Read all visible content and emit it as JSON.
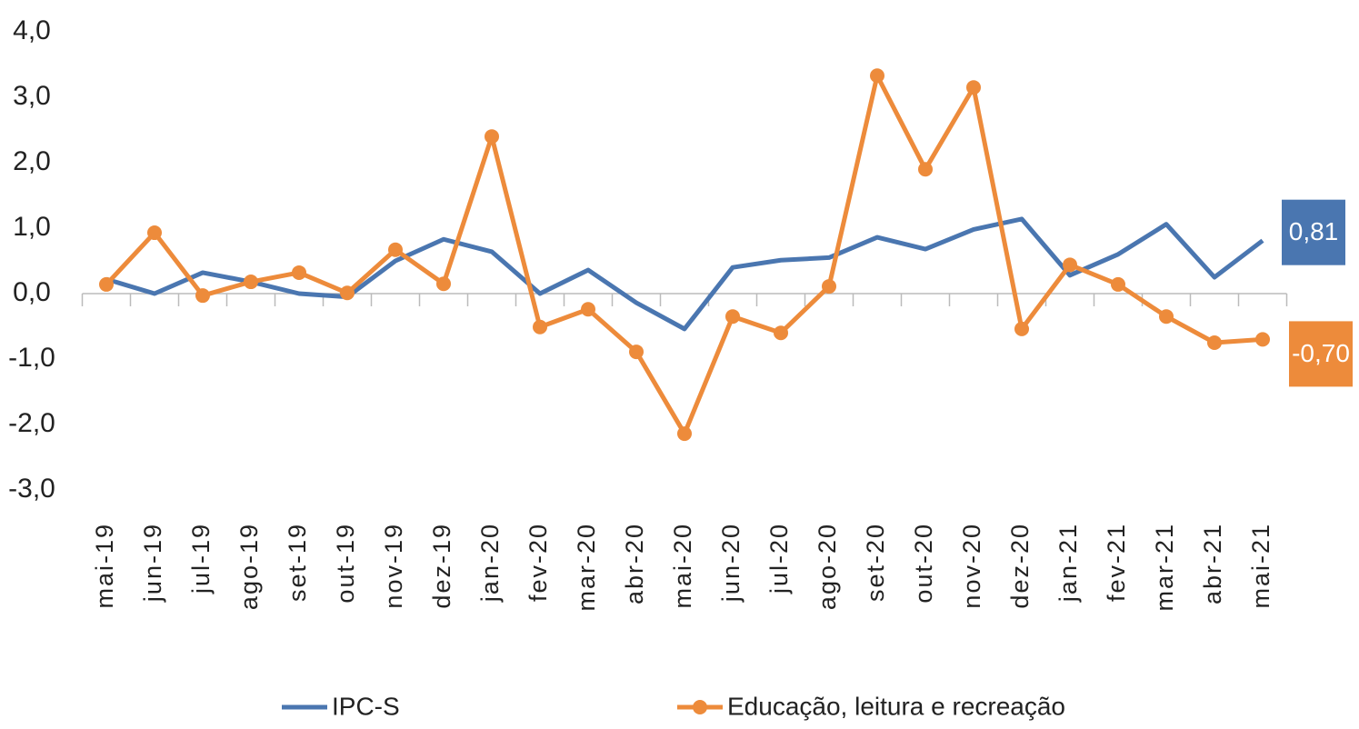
{
  "chart_data": {
    "type": "line",
    "categories": [
      "mai-19",
      "jun-19",
      "jul-19",
      "ago-19",
      "set-19",
      "out-19",
      "nov-19",
      "dez-19",
      "jan-20",
      "fev-20",
      "mar-20",
      "abr-20",
      "mai-20",
      "jun-20",
      "jul-20",
      "ago-20",
      "set-20",
      "out-20",
      "nov-20",
      "dez-20",
      "jan-21",
      "fev-21",
      "mar-21",
      "abr-21",
      "mai-21"
    ],
    "series": [
      {
        "name": "IPC-S",
        "color": "#4a76b0",
        "marker": false,
        "values": [
          0.22,
          0.0,
          0.32,
          0.18,
          0.0,
          -0.05,
          0.5,
          0.83,
          0.64,
          0.0,
          0.36,
          -0.14,
          -0.54,
          0.4,
          0.51,
          0.55,
          0.86,
          0.68,
          0.98,
          1.14,
          0.28,
          0.6,
          1.06,
          0.25,
          0.81
        ],
        "value_labels": [
          null,
          null,
          null,
          null,
          null,
          null,
          null,
          null,
          null,
          null,
          null,
          null,
          null,
          null,
          null,
          null,
          null,
          null,
          null,
          null,
          null,
          null,
          null,
          null,
          "0,81"
        ]
      },
      {
        "name": "Educação, leitura e recreação",
        "color": "#ed8b3b",
        "marker": true,
        "values": [
          0.14,
          0.93,
          -0.03,
          0.18,
          0.32,
          0.01,
          0.67,
          0.15,
          2.4,
          -0.51,
          -0.24,
          -0.89,
          -2.14,
          -0.35,
          -0.6,
          0.11,
          3.33,
          1.9,
          3.15,
          -0.54,
          0.44,
          0.14,
          -0.35,
          -0.75,
          -0.7
        ],
        "value_labels": [
          null,
          null,
          null,
          null,
          null,
          null,
          null,
          null,
          null,
          null,
          null,
          null,
          null,
          null,
          null,
          null,
          null,
          null,
          null,
          null,
          null,
          null,
          null,
          null,
          "-0,70"
        ]
      }
    ],
    "ylim": [
      -3,
      4
    ],
    "yticks": [
      {
        "value": -3,
        "label": "-3,0"
      },
      {
        "value": -2,
        "label": "-2,0"
      },
      {
        "value": -1,
        "label": "-1,0"
      },
      {
        "value": 0,
        "label": "0,0"
      },
      {
        "value": 1,
        "label": "1,0"
      },
      {
        "value": 2,
        "label": "2,0"
      },
      {
        "value": 3,
        "label": "3,0"
      },
      {
        "value": 4,
        "label": "4,0"
      }
    ],
    "grid": false,
    "legend": "bottom"
  }
}
